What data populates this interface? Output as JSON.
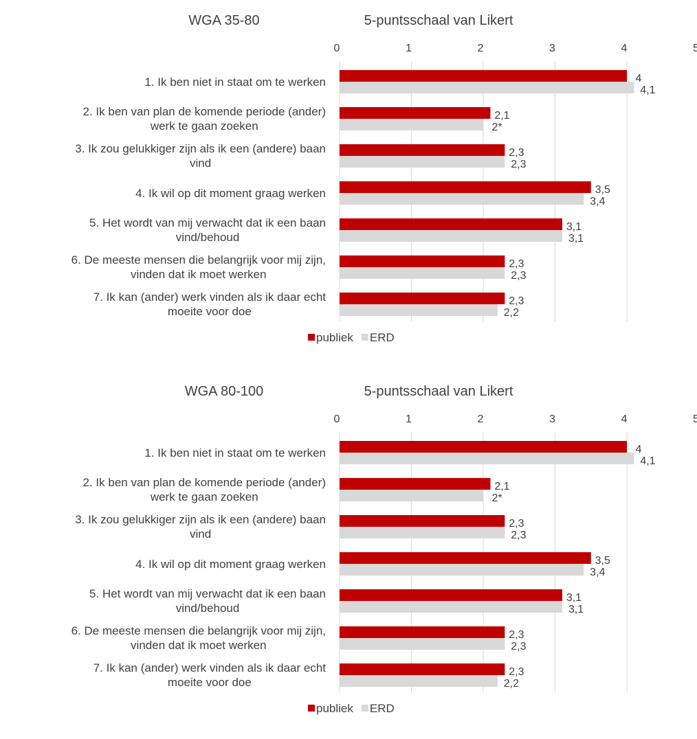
{
  "colors": {
    "publiek": "#c00000",
    "ERD": "#d9d9d9",
    "grid": "#d9d9d9",
    "text": "#404040"
  },
  "chart_data": [
    {
      "type": "bar",
      "orientation": "horizontal",
      "title": "WGA 35-80",
      "subtitle": "5-puntsschaal van Likert",
      "xlim": [
        0,
        5
      ],
      "ticks": [
        "0",
        "1",
        "2",
        "3",
        "4",
        "5"
      ],
      "grid": true,
      "legend_position": "bottom",
      "categories": [
        [
          "1. Ik ben niet in staat om te werken"
        ],
        [
          "2. Ik ben van plan de komende periode (ander)",
          "werk te gaan zoeken"
        ],
        [
          "3. Ik zou gelukkiger zijn als ik een (andere) baan",
          "vind"
        ],
        [
          "4. Ik wil op dit moment graag werken"
        ],
        [
          "5. Het wordt van mij verwacht dat ik een baan",
          "vind/behoud"
        ],
        [
          "6. De meeste mensen die belangrijk voor mij zijn,",
          "vinden dat ik moet werken"
        ],
        [
          "7. Ik kan (ander) werk vinden als ik daar echt",
          "moeite voor doe"
        ]
      ],
      "series": [
        {
          "name": "publiek",
          "values": [
            4,
            2.1,
            2.3,
            3.5,
            3.1,
            2.3,
            2.3
          ],
          "labels": [
            "4",
            "2,1",
            "2,3",
            "3,5",
            "3,1",
            "2,3",
            "2,3"
          ]
        },
        {
          "name": "ERD",
          "values": [
            4.1,
            2,
            2.3,
            3.4,
            3.1,
            2.3,
            2.2
          ],
          "labels": [
            "4,1",
            "2*",
            "2,3",
            "3,4",
            "3,1",
            "2,3",
            "2,2"
          ]
        }
      ]
    },
    {
      "type": "bar",
      "orientation": "horizontal",
      "title": "WGA 80-100",
      "subtitle": "5-puntsschaal van Likert",
      "xlim": [
        0,
        5
      ],
      "ticks": [
        "0",
        "1",
        "2",
        "3",
        "4",
        "5"
      ],
      "grid": true,
      "legend_position": "bottom",
      "categories": [
        [
          "1. Ik ben niet in staat om te werken"
        ],
        [
          "2. Ik ben van plan de komende periode (ander)",
          "werk te gaan zoeken"
        ],
        [
          "3. Ik zou gelukkiger zijn als ik een (andere) baan",
          "vind"
        ],
        [
          "4. Ik wil op dit moment graag werken"
        ],
        [
          "5. Het wordt van mij verwacht dat ik een baan",
          "vind/behoud"
        ],
        [
          "6. De meeste mensen die belangrijk voor mij zijn,",
          "vinden dat ik moet werken"
        ],
        [
          "7. Ik kan (ander) werk vinden als ik daar echt",
          "moeite voor doe"
        ]
      ],
      "series": [
        {
          "name": "publiek",
          "values": [
            4,
            2.1,
            2.3,
            3.5,
            3.1,
            2.3,
            2.3
          ],
          "labels": [
            "4",
            "2,1",
            "2,3",
            "3,5",
            "3,1",
            "2,3",
            "2,3"
          ]
        },
        {
          "name": "ERD",
          "values": [
            4.1,
            2,
            2.3,
            3.4,
            3.1,
            2.3,
            2.2
          ],
          "labels": [
            "4,1",
            "2*",
            "2,3",
            "3,4",
            "3,1",
            "2,3",
            "2,2"
          ]
        }
      ]
    }
  ]
}
